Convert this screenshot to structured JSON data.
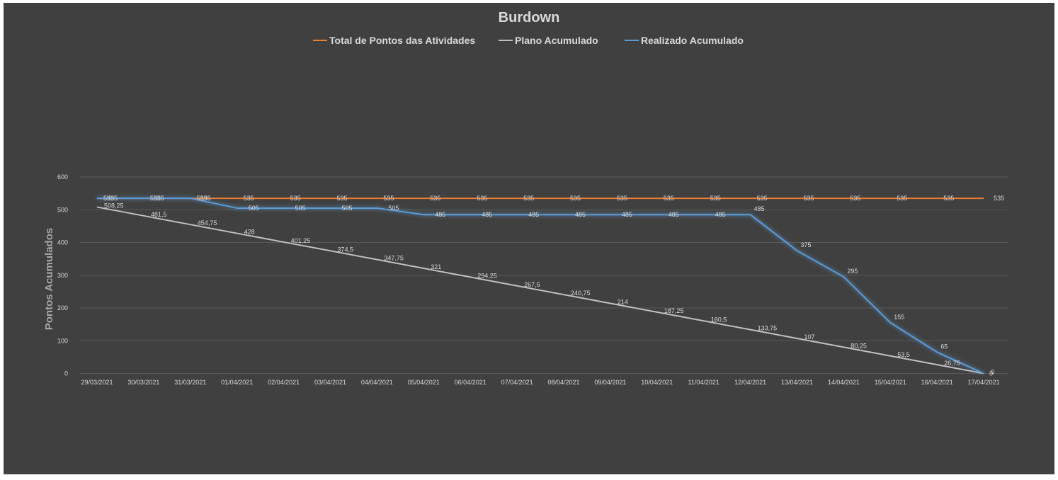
{
  "chart_data": {
    "type": "line",
    "title": "Burdown",
    "xlabel": "",
    "ylabel": "Pontos Acumulados",
    "ylim": [
      0,
      600
    ],
    "yticks": [
      0,
      100,
      200,
      300,
      400,
      500,
      600
    ],
    "grid": true,
    "legend_position": "top",
    "categories": [
      "29/03/2021",
      "30/03/2021",
      "31/03/2021",
      "01/04/2021",
      "02/04/2021",
      "03/04/2021",
      "04/04/2021",
      "05/04/2021",
      "06/04/2021",
      "07/04/2021",
      "08/04/2021",
      "09/04/2021",
      "10/04/2021",
      "11/04/2021",
      "12/04/2021",
      "13/04/2021",
      "14/04/2021",
      "15/04/2021",
      "16/04/2021",
      "17/04/2021"
    ],
    "series": [
      {
        "name": "Total de Pontos das Atividades",
        "color": "#ed7d31",
        "values": [
          535,
          535,
          535,
          535,
          535,
          535,
          535,
          535,
          535,
          535,
          535,
          535,
          535,
          535,
          535,
          535,
          535,
          535,
          535,
          535
        ],
        "labels": [
          "535",
          "535",
          "535",
          "535",
          "535",
          "535",
          "535",
          "535",
          "535",
          "535",
          "535",
          "535",
          "535",
          "535",
          "535",
          "535",
          "535",
          "535",
          "535",
          "535"
        ]
      },
      {
        "name": "Plano Acumulado",
        "color": "#bfbfbf",
        "values": [
          508.25,
          481.5,
          454.75,
          428,
          401.25,
          374.5,
          347.75,
          321,
          294.25,
          267.5,
          240.75,
          214,
          187.25,
          160.5,
          133.75,
          107,
          80.25,
          53.5,
          26.75,
          0
        ],
        "labels": [
          "508,25",
          "481,5",
          "454,75",
          "428",
          "401,25",
          "374,5",
          "347,75",
          "321",
          "294,25",
          "267,5",
          "240,75",
          "214",
          "187,25",
          "160,5",
          "133,75",
          "107",
          "80,25",
          "53,5",
          "26,75",
          "0"
        ]
      },
      {
        "name": "Realizado Acumulado",
        "color": "#5b9bd5",
        "values": [
          535,
          535,
          535,
          505,
          505,
          505,
          505,
          485,
          485,
          485,
          485,
          485,
          485,
          485,
          485,
          375,
          295,
          155,
          65,
          0
        ],
        "labels": [
          "535",
          "535",
          "535",
          "505",
          "505",
          "505",
          "505",
          "485",
          "485",
          "485",
          "485",
          "485",
          "485",
          "485",
          "485",
          "375",
          "295",
          "155",
          "65",
          "0"
        ]
      }
    ]
  }
}
